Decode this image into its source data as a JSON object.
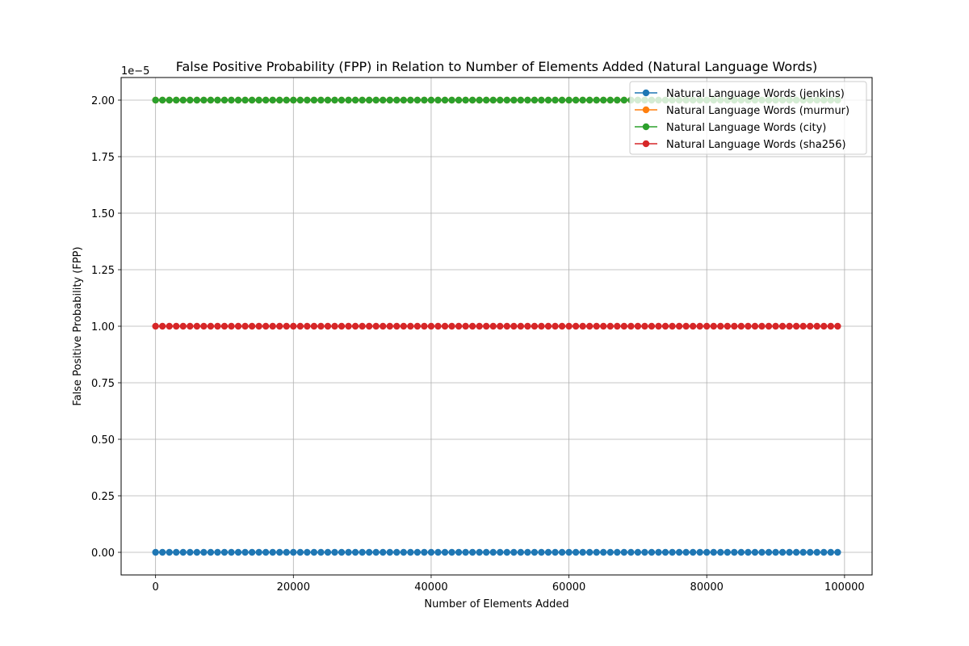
{
  "chart_data": {
    "type": "line",
    "title": "False Positive Probability (FPP) in Relation to Number of Elements Added (Natural Language Words)",
    "xlabel": "Number of Elements Added",
    "ylabel": "False Positive Probability (FPP)",
    "y_offset_label": "1e−5",
    "xlim": [
      -5000,
      104000
    ],
    "ylim": [
      -1e-06,
      2.1e-05
    ],
    "x_ticks": [
      0,
      20000,
      40000,
      60000,
      80000,
      100000
    ],
    "x_tick_labels": [
      "0",
      "20000",
      "40000",
      "60000",
      "80000",
      "100000"
    ],
    "y_ticks": [
      0,
      2.5e-06,
      5e-06,
      7.5e-06,
      1e-05,
      1.25e-05,
      1.5e-05,
      1.75e-05,
      2e-05
    ],
    "y_tick_labels": [
      "0.00",
      "0.25",
      "0.50",
      "0.75",
      "1.00",
      "1.25",
      "1.50",
      "1.75",
      "2.00"
    ],
    "grid": true,
    "legend_position": "top-right",
    "x": {
      "start": 0,
      "stop": 99000,
      "step": 1000
    },
    "series": [
      {
        "name": "Natural Language Words (jenkins)",
        "color": "#1f77b4",
        "constant_value": 0
      },
      {
        "name": "Natural Language Words (murmur)",
        "color": "#ff7f0e",
        "constant_value": 2e-05
      },
      {
        "name": "Natural Language Words (city)",
        "color": "#2ca02c",
        "constant_value": 2e-05
      },
      {
        "name": "Natural Language Words (sha256)",
        "color": "#d62728",
        "constant_value": 1e-05
      }
    ]
  }
}
